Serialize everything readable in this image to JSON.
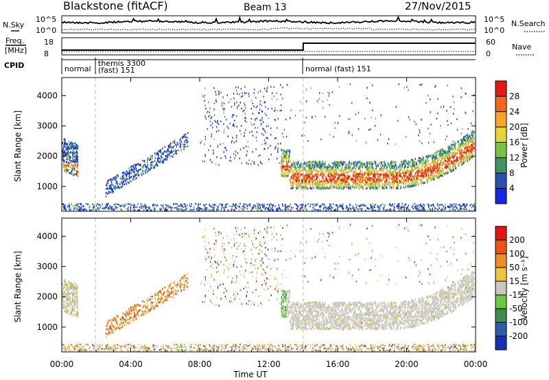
{
  "header": {
    "station": "Blackstone (fitACF)",
    "beam": "Beam 13",
    "date": "27/Nov/2015"
  },
  "noise_panel": {
    "left_label": "N.Sky",
    "right_label": "N.Search",
    "left_ticks": [
      "10^5",
      "10^0"
    ],
    "right_ticks": [
      "10^5",
      "10^0"
    ]
  },
  "freq_panel": {
    "left_label_1": "Freq.",
    "left_label_2": "[MHz]",
    "right_label": "Nave",
    "left_ticks": [
      "18",
      "8"
    ],
    "right_ticks": [
      "60",
      "0"
    ]
  },
  "cpid": {
    "label": "CPID",
    "segments": [
      {
        "start_h": 0,
        "lines": [
          "normal"
        ]
      },
      {
        "start_h": 1.95,
        "lines": [
          "themis 3300",
          "(fast) 151"
        ]
      },
      {
        "start_h": 14.0,
        "lines": [
          "normal (fast) 151"
        ]
      }
    ]
  },
  "x_axis": {
    "label": "Time UT",
    "range_h": [
      0,
      24
    ],
    "ticks": [
      "00:00",
      "04:00",
      "08:00",
      "12:00",
      "16:00",
      "20:00",
      "00:00"
    ]
  },
  "y_axis": {
    "label": "Slant Range [km]",
    "ticks": [
      "1000",
      "2000",
      "3000",
      "4000"
    ],
    "range_km": [
      180,
      4600
    ]
  },
  "power_colorbar": {
    "label": "Power [dB]",
    "ticks": [
      "4",
      "8",
      "12",
      "16",
      "20",
      "24",
      "28"
    ],
    "colors": [
      "#1428e8",
      "#2a4fb0",
      "#3e9464",
      "#7fbf48",
      "#e6d23a",
      "#f5a628",
      "#f06818",
      "#e21a10"
    ]
  },
  "velocity_colorbar": {
    "label": "Velocity [m s⁻¹]",
    "ticks": [
      "200",
      "100",
      "50",
      "15",
      "-15",
      "-50",
      "-100",
      "-200"
    ],
    "colors": [
      "#1730b8",
      "#2e5ea8",
      "#3c8e50",
      "#6cc840",
      "#c8c8be",
      "#f0c440",
      "#f08c2a",
      "#ee5214",
      "#e01612"
    ]
  }
}
